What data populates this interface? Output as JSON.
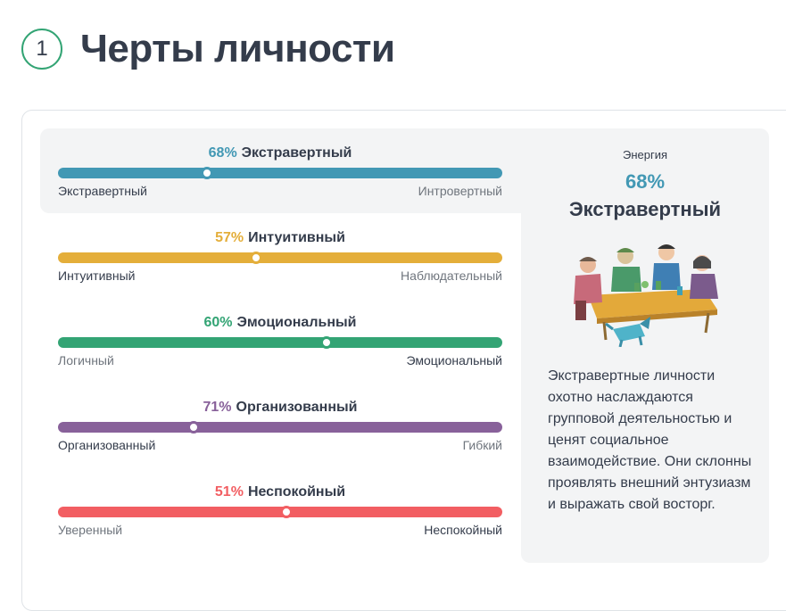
{
  "header": {
    "step": "1",
    "title": "Черты личности"
  },
  "traits": [
    {
      "pct": "68%",
      "name": "Экстравертный",
      "left": "Экстравертный",
      "right": "Интровертный",
      "value": 0.335,
      "color": "#4298b4",
      "selected_side": "left"
    },
    {
      "pct": "57%",
      "name": "Интуитивный",
      "left": "Интуитивный",
      "right": "Наблюдательный",
      "value": 0.445,
      "color": "#e4ae3a",
      "selected_side": "left"
    },
    {
      "pct": "60%",
      "name": "Эмоциональный",
      "left": "Логичный",
      "right": "Эмоциональный",
      "value": 0.605,
      "color": "#33a474",
      "selected_side": "right"
    },
    {
      "pct": "71%",
      "name": "Организованный",
      "left": "Организованный",
      "right": "Гибкий",
      "value": 0.305,
      "color": "#88619a",
      "selected_side": "left"
    },
    {
      "pct": "51%",
      "name": "Неспокойный",
      "left": "Уверенный",
      "right": "Неспокойный",
      "value": 0.515,
      "color": "#f25e62",
      "selected_side": "right"
    }
  ],
  "side": {
    "category": "Энергия",
    "pct": "68%",
    "trait": "Экстравертный",
    "illustration": "people-around-table-illustration",
    "description": "Экстравертные личности охотно наслаждаются групповой деятельностью и ценят социальное взаимодействие. Они склонны проявлять внешний энтузиазм и выражать свой восторг."
  }
}
